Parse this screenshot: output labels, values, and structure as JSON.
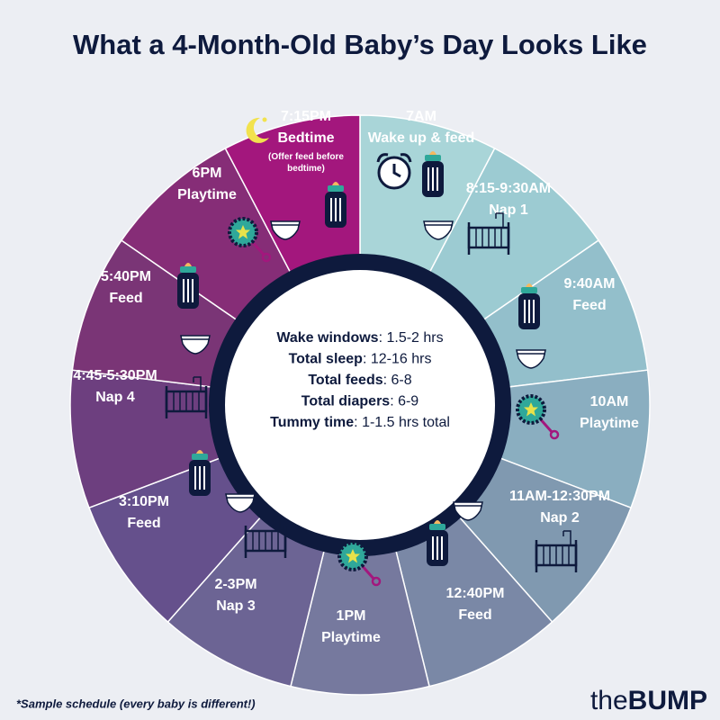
{
  "header": {
    "title": "What a 4-Month-Old Baby’s Day Looks Like"
  },
  "segments": [
    {
      "time": "7AM",
      "activity": "Wake up & feed",
      "color": "#a9d5d8"
    },
    {
      "time": "8:15-9:30AM",
      "activity": "Nap 1",
      "color": "#9ccbd2"
    },
    {
      "time": "9:40AM",
      "activity": "Feed",
      "color": "#93bfcb"
    },
    {
      "time": "10AM",
      "activity": "Playtime",
      "color": "#8aaec0"
    },
    {
      "time": "11AM-12:30PM",
      "activity": "Nap 2",
      "color": "#8099b0"
    },
    {
      "time": "12:40PM",
      "activity": "Feed",
      "color": "#7a88a6"
    },
    {
      "time": "1PM",
      "activity": "Playtime",
      "color": "#76799e"
    },
    {
      "time": "2-3PM",
      "activity": "Nap 3",
      "color": "#6c6494"
    },
    {
      "time": "3:10PM",
      "activity": "Feed",
      "color": "#65508c"
    },
    {
      "time": "4:45-5:30PM",
      "activity": "Nap 4",
      "color": "#6d3f7f"
    },
    {
      "time": "5:40PM",
      "activity": "Feed",
      "color": "#7a3576"
    },
    {
      "time": "6PM",
      "activity": "Playtime",
      "color": "#862d77"
    },
    {
      "time": "7:15PM",
      "activity": "Bedtime",
      "note": "(Offer feed before bedtime)",
      "color": "#a3177d"
    }
  ],
  "summary": [
    {
      "label": "Wake windows",
      "value": ": 1.5-2 hrs"
    },
    {
      "label": "Total sleep",
      "value": ": 12-16 hrs"
    },
    {
      "label": "Total feeds",
      "value": ": 6-8"
    },
    {
      "label": "Total diapers",
      "value": ": 6-9"
    },
    {
      "label": "Tummy time",
      "value": ": 1-1.5 hrs total"
    }
  ],
  "footnote": "*Sample schedule (every baby is different!)",
  "brand": {
    "prefix": "the",
    "name": "BUMP"
  }
}
